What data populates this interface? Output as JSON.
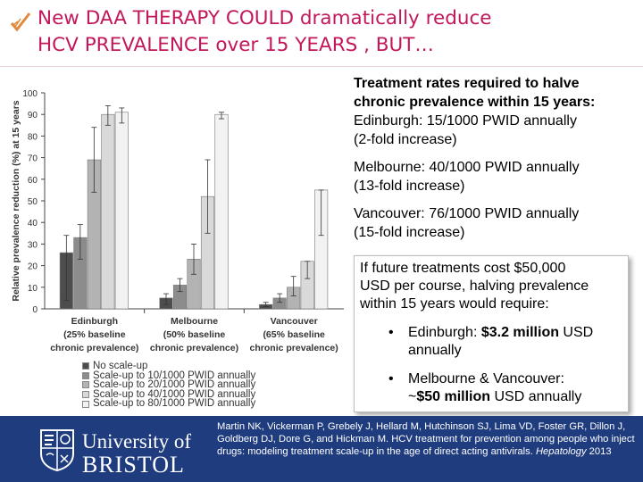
{
  "slide": {
    "title_line1": "New DAA THERAPY COULD dramatically reduce",
    "title_line2": "HCV PREVALENCE over 15 YEARS , BUT…",
    "title_icon": "checkmark-icon"
  },
  "right_panel": {
    "heading_line1": "Treatment rates required to halve",
    "heading_line2": "chronic prevalence within 15 years:",
    "edinburgh_line1": "Edinburgh: 15/1000 PWID annually",
    "edinburgh_line2": "(2-fold increase)",
    "melbourne_line1": "Melbourne: 40/1000 PWID annually",
    "melbourne_line2": "(13-fold increase)",
    "vancouver_line1": "Vancouver: 76/1000 PWID annually",
    "vancouver_line2": "(15-fold increase)"
  },
  "cost_box": {
    "intro_line1": "If future treatments cost $50,000",
    "intro_line2": "USD per course, halving prevalence",
    "intro_line3": "within 15 years would require:",
    "bullet_char": "•",
    "b1_prefix": "Edinburgh: ",
    "b1_bold": "$3.2 million",
    "b1_suffix": " USD",
    "b1_line2": "annually",
    "b2_line1": "Melbourne & Vancouver:",
    "b2_prefix": "~",
    "b2_bold": "$50 million",
    "b2_suffix": " USD annually"
  },
  "footer": {
    "crest_icon": "university-crest-icon",
    "university_line1": "University of",
    "university_line2": "BRISTOL",
    "citation_main": "Martin NK, Vickerman P, Grebely J, Hellard M, Hutchinson SJ, Lima VD, Foster GR, Dillon J, Goldberg DJ, Dore G, and Hickman M.  HCV treatment for prevention among people who inject drugs: modeling treatment scale-up in the age of direct acting antivirals. ",
    "citation_journal": "Hepatology",
    "citation_year": " 2013"
  },
  "chart_data": {
    "type": "bar",
    "ylabel": "Relative prevalence reduction (%) at 15 years",
    "ylim": [
      0,
      100
    ],
    "yticks": [
      0,
      10,
      20,
      30,
      40,
      50,
      60,
      70,
      80,
      90,
      100
    ],
    "categories": [
      {
        "lines": [
          "Edinburgh",
          "(25% baseline",
          "chronic prevalence)"
        ]
      },
      {
        "lines": [
          "Melbourne",
          "(50% baseline",
          "chronic prevalence)"
        ]
      },
      {
        "lines": [
          "Vancouver",
          "(65% baseline",
          "chronic prevalence)"
        ]
      }
    ],
    "series": [
      {
        "name": "No scale-up",
        "color": "#4d4d4d",
        "values": [
          26,
          5,
          2
        ],
        "err_low": [
          4,
          2,
          1
        ],
        "err_high": [
          34,
          7,
          3
        ]
      },
      {
        "name": "Scale-up to 10/1000 PWID annually",
        "color": "#8c8c8c",
        "values": [
          33,
          11,
          5
        ],
        "err_low": [
          23,
          8,
          3
        ],
        "err_high": [
          39,
          14,
          7
        ]
      },
      {
        "name": "Scale-up to 20/1000 PWID annually",
        "color": "#b3b3b3",
        "values": [
          69,
          23,
          10
        ],
        "err_low": [
          54,
          16,
          6
        ],
        "err_high": [
          84,
          30,
          15
        ]
      },
      {
        "name": "Scale-up to 40/1000 PWID annually",
        "color": "#d9d9d9",
        "values": [
          90,
          52,
          22
        ],
        "err_low": [
          85,
          35,
          14
        ],
        "err_high": [
          94,
          69,
          22
        ]
      },
      {
        "name": "Scale-up to 80/1000 PWID annually",
        "color": "#f2f2f2",
        "values": [
          91,
          90,
          55
        ],
        "err_low": [
          86,
          88,
          34
        ],
        "err_high": [
          93,
          91,
          55
        ]
      }
    ],
    "legend_position": "bottom-left",
    "grid": false
  }
}
